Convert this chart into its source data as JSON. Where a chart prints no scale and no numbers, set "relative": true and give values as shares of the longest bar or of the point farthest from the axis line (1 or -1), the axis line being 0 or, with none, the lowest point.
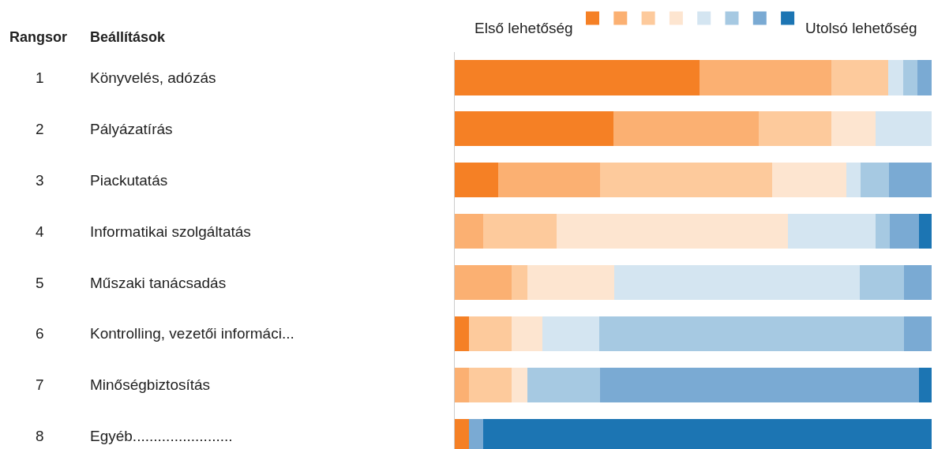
{
  "chart_data": {
    "type": "bar",
    "orientation": "horizontal",
    "stacked": true,
    "relative": true,
    "legend": "top right",
    "categories": [
      "Könyvelés, adózás",
      "Pályázatírás",
      "Piackutatás",
      "Informatikai szolgáltatás",
      "Műszaki tanácsadás",
      "Kontrolling, vezetői informáci...",
      "Minőségbiztosítás",
      "Egyéb........................"
    ],
    "annotations": [
      "Rangsor",
      "Beállítások",
      "1",
      "2",
      "3",
      "4",
      "5",
      "6",
      "7",
      "8"
    ],
    "series": [
      {
        "name": "Első lehetőség",
        "color": "#f58025",
        "values": [
          0.514,
          0.333,
          0.091,
          null,
          null,
          0.03,
          null,
          0.03
        ]
      },
      {
        "color": "#fbb072",
        "values": [
          0.275,
          0.305,
          0.213,
          0.059,
          0.119,
          null,
          0.03,
          null
        ]
      },
      {
        "color": "#fdca9c",
        "values": [
          0.12,
          0.152,
          0.362,
          0.155,
          0.033,
          0.089,
          0.089,
          null
        ]
      },
      {
        "color": "#fde5d0",
        "values": [
          null,
          0.092,
          0.155,
          0.485,
          0.183,
          0.064,
          0.033,
          null
        ]
      },
      {
        "color": "#d4e5f1",
        "values": [
          0.031,
          0.118,
          0.03,
          0.183,
          0.515,
          0.12,
          null,
          null
        ]
      },
      {
        "color": "#a6c9e2",
        "values": [
          0.03,
          null,
          0.059,
          0.031,
          0.092,
          0.639,
          0.152,
          null
        ]
      },
      {
        "color": "#7aaad3",
        "values": [
          0.03,
          null,
          0.09,
          0.061,
          0.058,
          0.058,
          0.67,
          0.03
        ]
      },
      {
        "name": "Utolsó lehetőség",
        "color": "#1c75b3",
        "values": [
          null,
          null,
          null,
          0.026,
          null,
          null,
          0.026,
          0.94
        ]
      }
    ]
  }
}
